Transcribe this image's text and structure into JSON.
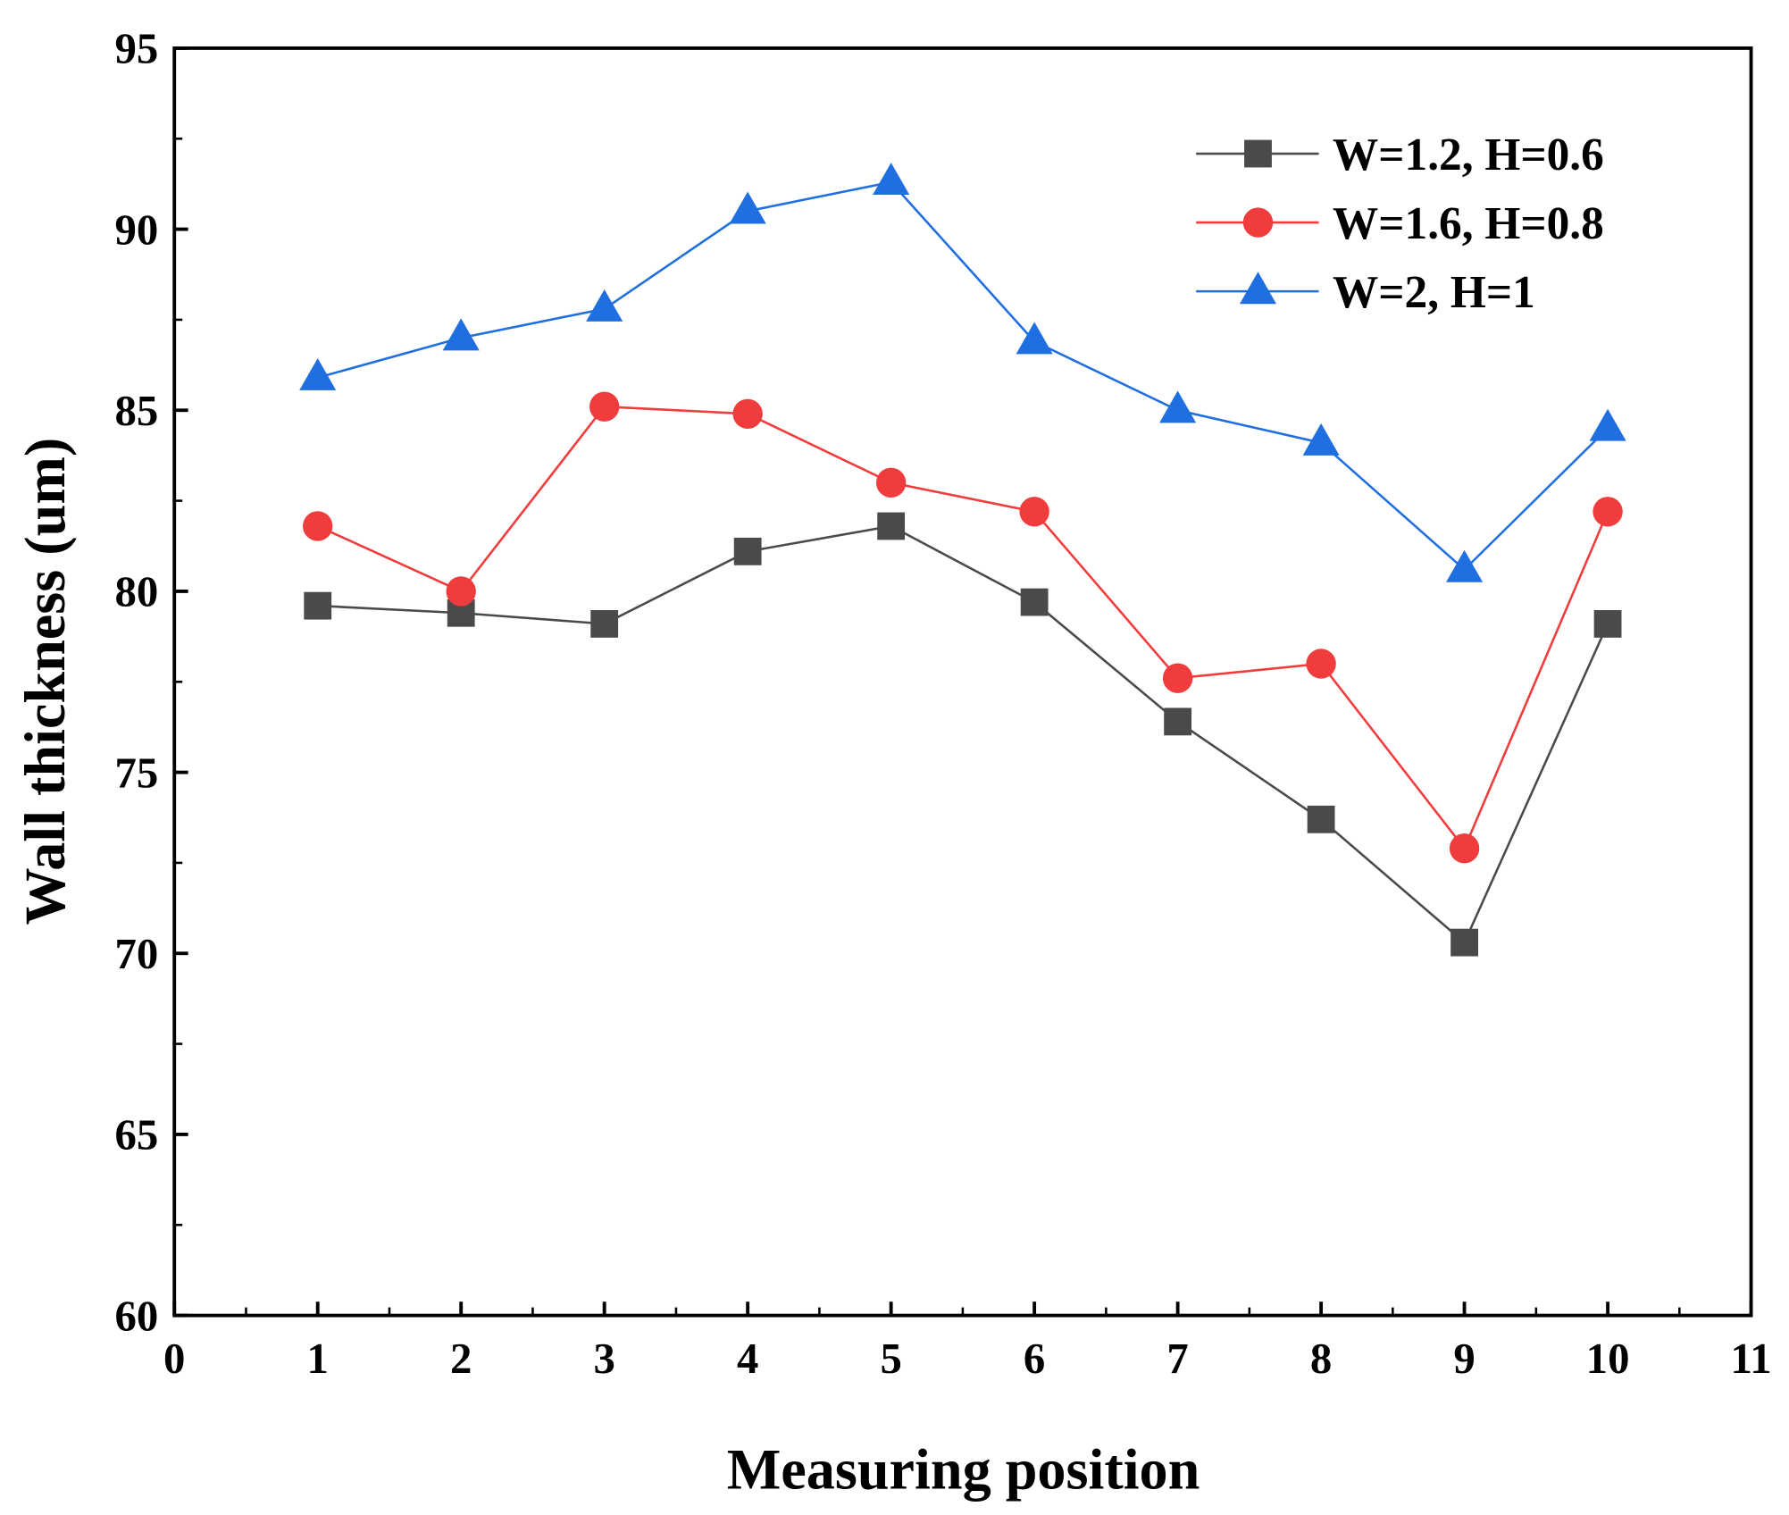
{
  "chart_data": {
    "type": "line",
    "title": "",
    "xlabel": "Measuring position",
    "ylabel": "Wall thickness (um)",
    "xlim": [
      0,
      11
    ],
    "ylim": [
      60,
      95
    ],
    "xticks": [
      0,
      1,
      2,
      3,
      4,
      5,
      6,
      7,
      8,
      9,
      10,
      11
    ],
    "yticks": [
      60,
      65,
      70,
      75,
      80,
      85,
      90,
      95
    ],
    "grid": false,
    "legend_position": "top-right",
    "x": [
      1,
      2,
      3,
      4,
      5,
      6,
      7,
      8,
      9,
      10
    ],
    "series": [
      {
        "name": "W=1.2, H=0.6",
        "color": "#4a4a4a",
        "marker": "square",
        "values": [
          79.6,
          79.4,
          79.1,
          81.1,
          81.8,
          79.7,
          76.4,
          73.7,
          70.3,
          79.1
        ]
      },
      {
        "name": "W=1.6, H=0.8",
        "color": "#f03c3c",
        "marker": "circle",
        "values": [
          81.8,
          80.0,
          85.1,
          84.9,
          83.0,
          82.2,
          77.6,
          78.0,
          72.9,
          82.2
        ]
      },
      {
        "name": "W=2, H=1",
        "color": "#1f6fe0",
        "marker": "triangle",
        "values": [
          85.9,
          87.0,
          87.8,
          90.5,
          91.3,
          86.9,
          85.0,
          84.1,
          80.6,
          84.5
        ]
      }
    ]
  }
}
